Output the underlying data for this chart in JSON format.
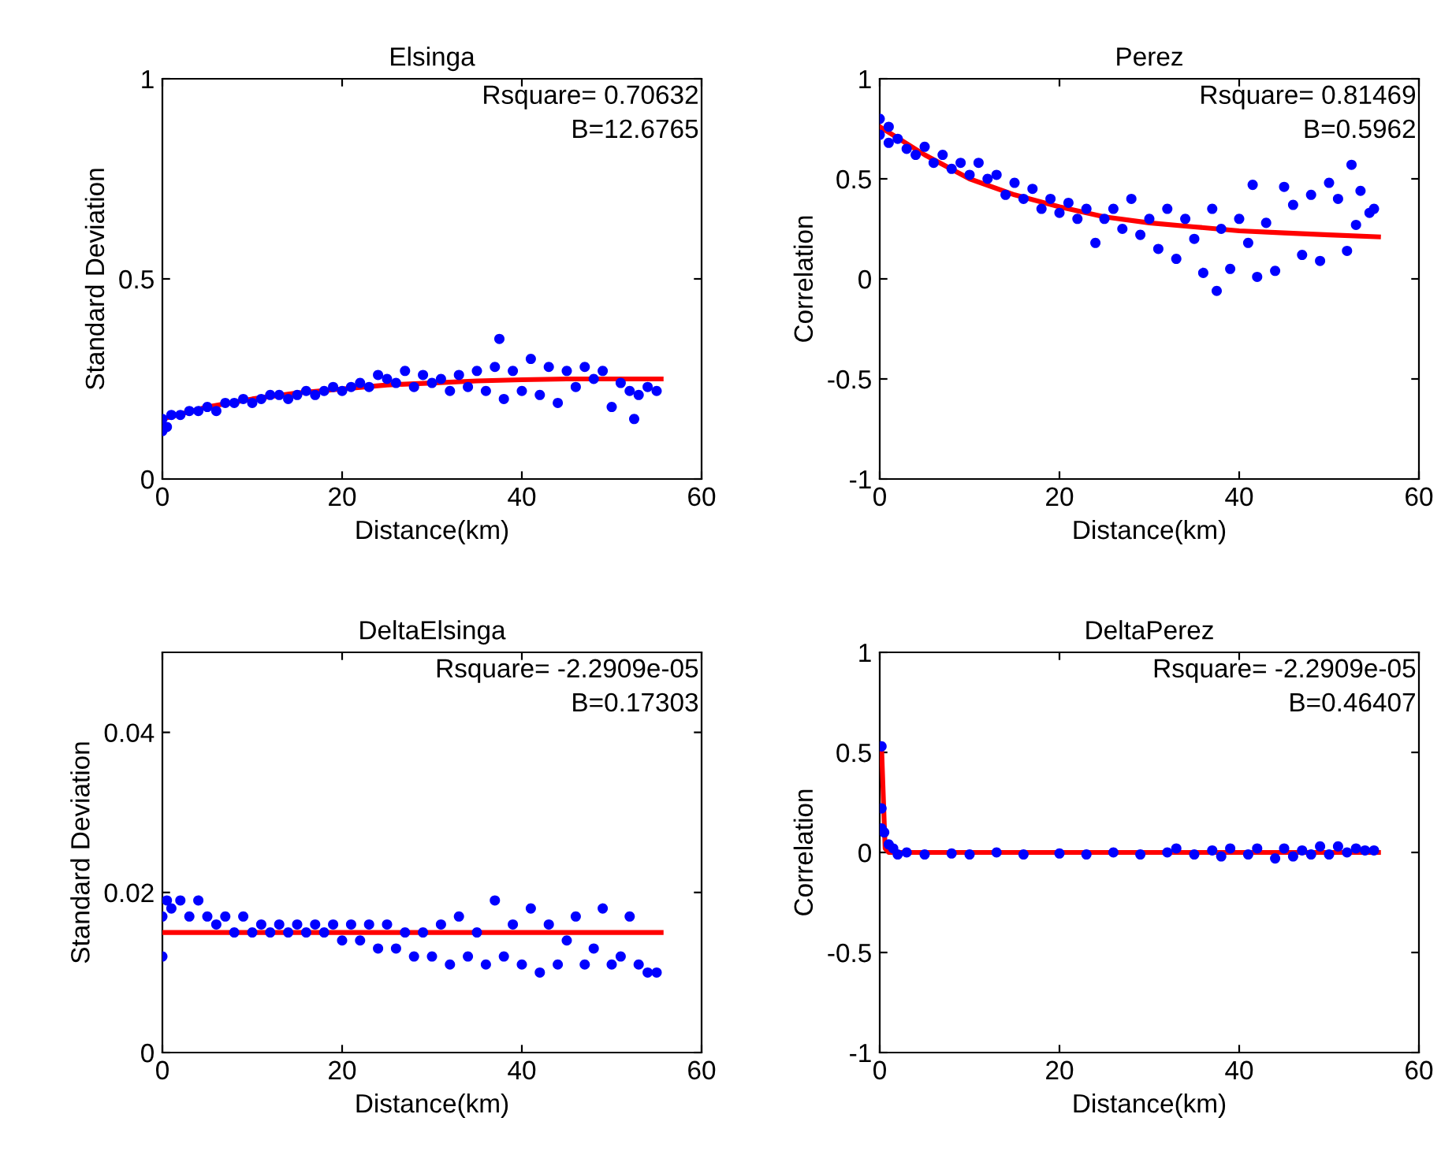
{
  "chart_data": [
    {
      "type": "scatter",
      "title": "Elsinga",
      "xlabel": "Distance(km)",
      "ylabel": "Standard Deviation",
      "xlim": [
        0,
        60
      ],
      "xticks": [
        0,
        20,
        40,
        60
      ],
      "ylim": [
        0,
        1
      ],
      "yticks": [
        0,
        0.5,
        1
      ],
      "annotations": [
        "Rsquare= 0.70632",
        "B=12.6765"
      ],
      "series": [
        {
          "color": "#0000ff",
          "marker": "circle",
          "x": [
            0,
            0,
            0.5,
            1,
            2,
            3,
            4,
            5,
            6,
            7,
            8,
            9,
            10,
            11,
            12,
            13,
            14,
            15,
            16,
            17,
            18,
            19,
            20,
            21,
            22,
            23,
            24,
            25,
            26,
            27,
            28,
            29,
            30,
            31,
            32,
            33,
            34,
            35,
            36,
            37,
            37.5,
            38,
            39,
            40,
            41,
            42,
            43,
            44,
            45,
            46,
            47,
            48,
            49,
            50,
            51,
            52,
            52.5,
            53,
            54,
            55
          ],
          "values": [
            0.15,
            0.12,
            0.13,
            0.16,
            0.16,
            0.17,
            0.17,
            0.18,
            0.17,
            0.19,
            0.19,
            0.2,
            0.19,
            0.2,
            0.21,
            0.21,
            0.2,
            0.21,
            0.22,
            0.21,
            0.22,
            0.23,
            0.22,
            0.23,
            0.24,
            0.23,
            0.26,
            0.25,
            0.24,
            0.27,
            0.23,
            0.26,
            0.24,
            0.25,
            0.22,
            0.26,
            0.23,
            0.27,
            0.22,
            0.28,
            0.35,
            0.2,
            0.27,
            0.22,
            0.3,
            0.21,
            0.28,
            0.19,
            0.27,
            0.23,
            0.28,
            0.25,
            0.27,
            0.18,
            0.24,
            0.22,
            0.15,
            0.21,
            0.23,
            0.22
          ]
        },
        {
          "type": "line",
          "color": "#ff0000",
          "line_style": "solid",
          "x": [
            0,
            5,
            10,
            15,
            20,
            25,
            30,
            35,
            40,
            45,
            50,
            55.5
          ],
          "values": [
            0.15,
            0.18,
            0.2,
            0.215,
            0.225,
            0.235,
            0.24,
            0.245,
            0.248,
            0.25,
            0.25,
            0.25
          ]
        }
      ]
    },
    {
      "type": "scatter",
      "title": "Perez",
      "xlabel": "Distance(km)",
      "ylabel": "Correlation",
      "xlim": [
        0,
        60
      ],
      "xticks": [
        0,
        20,
        40,
        60
      ],
      "ylim": [
        -1,
        1
      ],
      "yticks": [
        -1,
        -0.5,
        0,
        0.5,
        1
      ],
      "annotations": [
        "Rsquare= 0.81469",
        "B=0.5962"
      ],
      "series": [
        {
          "color": "#0000ff",
          "marker": "circle",
          "x": [
            0,
            0,
            1,
            1,
            2,
            3,
            4,
            5,
            6,
            7,
            8,
            9,
            10,
            11,
            12,
            13,
            14,
            15,
            16,
            17,
            18,
            19,
            20,
            21,
            22,
            23,
            24,
            25,
            26,
            27,
            28,
            29,
            30,
            31,
            32,
            33,
            34,
            35,
            36,
            37,
            37.5,
            38,
            39,
            40,
            41,
            41.5,
            42,
            43,
            44,
            45,
            46,
            47,
            48,
            49,
            50,
            51,
            52,
            52.5,
            53,
            53.5,
            54.5,
            55
          ],
          "values": [
            0.8,
            0.72,
            0.76,
            0.68,
            0.7,
            0.65,
            0.62,
            0.66,
            0.58,
            0.62,
            0.55,
            0.58,
            0.52,
            0.58,
            0.5,
            0.52,
            0.42,
            0.48,
            0.4,
            0.45,
            0.35,
            0.4,
            0.33,
            0.38,
            0.3,
            0.35,
            0.18,
            0.3,
            0.35,
            0.25,
            0.4,
            0.22,
            0.3,
            0.15,
            0.35,
            0.1,
            0.3,
            0.2,
            0.03,
            0.35,
            -0.06,
            0.25,
            0.05,
            0.3,
            0.18,
            0.47,
            0.01,
            0.28,
            0.04,
            0.46,
            0.37,
            0.12,
            0.42,
            0.09,
            0.48,
            0.4,
            0.14,
            0.57,
            0.27,
            0.44,
            0.33,
            0.35
          ]
        },
        {
          "type": "line",
          "color": "#ff0000",
          "line_style": "solid",
          "x": [
            0,
            5,
            10,
            15,
            20,
            25,
            30,
            35,
            40,
            45,
            50,
            55.5
          ],
          "values": [
            0.76,
            0.62,
            0.5,
            0.42,
            0.36,
            0.31,
            0.28,
            0.26,
            0.24,
            0.23,
            0.22,
            0.21
          ]
        }
      ]
    },
    {
      "type": "scatter",
      "title": "DeltaElsinga",
      "xlabel": "Distance(km)",
      "ylabel": "Standard Deviation",
      "xlim": [
        0,
        60
      ],
      "xticks": [
        0,
        20,
        40,
        60
      ],
      "ylim": [
        0,
        0.05
      ],
      "yticks": [
        0,
        0.02,
        0.04
      ],
      "annotations": [
        "Rsquare= -2.2909e-05",
        "B=0.17303"
      ],
      "series": [
        {
          "color": "#0000ff",
          "marker": "circle",
          "x": [
            0,
            0,
            0.5,
            1,
            2,
            3,
            4,
            5,
            6,
            7,
            8,
            9,
            10,
            11,
            12,
            13,
            14,
            15,
            16,
            17,
            18,
            19,
            20,
            21,
            22,
            23,
            24,
            25,
            26,
            27,
            28,
            29,
            30,
            31,
            32,
            33,
            34,
            35,
            36,
            37,
            38,
            39,
            40,
            41,
            42,
            43,
            44,
            45,
            46,
            47,
            48,
            49,
            50,
            51,
            52,
            53,
            54,
            55
          ],
          "values": [
            0.017,
            0.012,
            0.019,
            0.018,
            0.019,
            0.017,
            0.019,
            0.017,
            0.016,
            0.017,
            0.015,
            0.017,
            0.015,
            0.016,
            0.015,
            0.016,
            0.015,
            0.016,
            0.015,
            0.016,
            0.015,
            0.016,
            0.014,
            0.016,
            0.014,
            0.016,
            0.013,
            0.016,
            0.013,
            0.015,
            0.012,
            0.015,
            0.012,
            0.016,
            0.011,
            0.017,
            0.012,
            0.015,
            0.011,
            0.019,
            0.012,
            0.016,
            0.011,
            0.018,
            0.01,
            0.016,
            0.011,
            0.014,
            0.017,
            0.011,
            0.013,
            0.018,
            0.011,
            0.012,
            0.017,
            0.011,
            0.01,
            0.01
          ]
        },
        {
          "type": "line",
          "color": "#ff0000",
          "line_style": "solid",
          "x": [
            0,
            55.5
          ],
          "values": [
            0.015,
            0.015
          ]
        }
      ]
    },
    {
      "type": "scatter",
      "title": "DeltaPerez",
      "xlabel": "Distance(km)",
      "ylabel": "Correlation",
      "xlim": [
        0,
        60
      ],
      "xticks": [
        0,
        20,
        40,
        60
      ],
      "ylim": [
        -1,
        1
      ],
      "yticks": [
        -1,
        -0.5,
        0,
        0.5,
        1
      ],
      "annotations": [
        "Rsquare= -2.2909e-05",
        "B=0.46407"
      ],
      "series": [
        {
          "color": "#0000ff",
          "marker": "circle",
          "x": [
            0.2,
            0.2,
            0.2,
            0.5,
            1,
            1.5,
            2,
            3,
            5,
            8,
            10,
            13,
            16,
            20,
            23,
            26,
            29,
            32,
            33,
            35,
            37,
            38,
            39,
            41,
            42,
            44,
            45,
            46,
            47,
            48,
            49,
            50,
            51,
            52,
            53,
            54,
            55
          ],
          "values": [
            0.53,
            0.22,
            0.12,
            0.1,
            0.04,
            0.02,
            -0.01,
            0.0,
            -0.01,
            -0.005,
            -0.01,
            0.0,
            -0.01,
            -0.005,
            -0.01,
            0.0,
            -0.01,
            0.0,
            0.02,
            -0.01,
            0.01,
            -0.02,
            0.02,
            -0.01,
            0.02,
            -0.03,
            0.02,
            -0.02,
            0.01,
            -0.01,
            0.03,
            -0.01,
            0.03,
            0.0,
            0.02,
            0.01,
            0.01
          ]
        },
        {
          "type": "line",
          "color": "#ff0000",
          "line_style": "solid",
          "x": [
            0.2,
            0.6,
            1,
            55.5
          ],
          "values": [
            0.53,
            0.02,
            0.0,
            0.0
          ]
        }
      ]
    }
  ]
}
